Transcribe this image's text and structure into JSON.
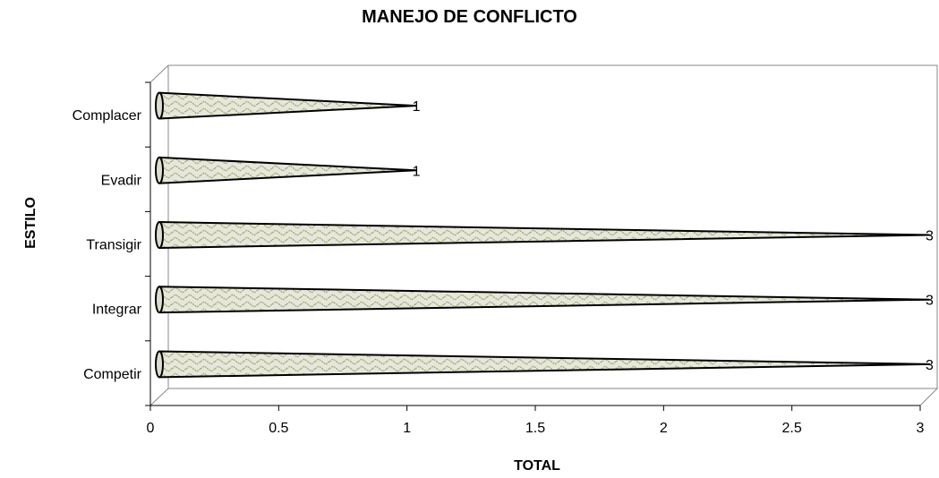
{
  "chart_data": {
    "type": "bar",
    "orientation": "horizontal",
    "title": "MANEJO DE CONFLICTO",
    "xlabel": "TOTAL",
    "ylabel": "ESTILO",
    "categories": [
      "Complacer",
      "Evadir",
      "Transigir",
      "Integrar",
      "Competir"
    ],
    "values": [
      1,
      1,
      3,
      3,
      3
    ],
    "xlim": [
      0,
      3
    ],
    "x_ticks": [
      "0",
      "0.5",
      "1",
      "1.5",
      "2",
      "2.5",
      "3"
    ],
    "data_labels": [
      "1",
      "1",
      "3",
      "3",
      "3"
    ],
    "grid": false,
    "legend": "none",
    "bar_shape": "cone",
    "bar_pattern_color": "#9aa860"
  }
}
